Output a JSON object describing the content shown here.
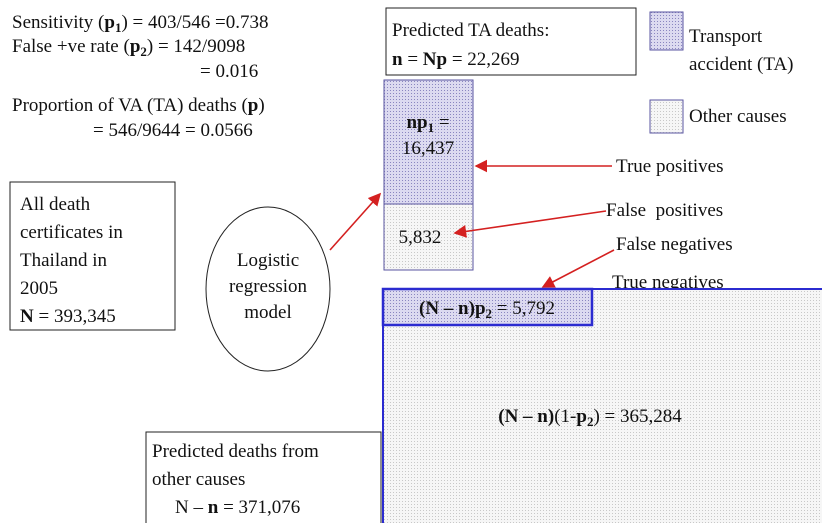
{
  "stats": {
    "sensitivity": [
      "Sensitivity (",
      "p",
      "1",
      ") = 403/546 =0.738"
    ],
    "false_positive_rate": [
      "False +ve rate (",
      "p",
      "2",
      ") = 142/9098"
    ],
    "false_positive_value": "= 0.016",
    "proportion": [
      "Proportion of VA (TA) deaths (",
      "p",
      ")"
    ],
    "proportion_value": "= 546/9644 = 0.0566"
  },
  "population_box": {
    "lines": [
      "All death",
      "certificates in",
      "Thailand in",
      "2005"
    ],
    "total": [
      "N",
      " = 393,345"
    ]
  },
  "model": [
    "Logistic",
    "regression",
    "model"
  ],
  "predicted_ta": {
    "title": "Predicted TA deaths:",
    "formula": [
      "n",
      " = ",
      "Np",
      " = 22,269"
    ]
  },
  "legend": {
    "ta": [
      "Transport",
      "accident (TA)"
    ],
    "other": "Other causes"
  },
  "ta_column": {
    "true_positive_formula": [
      "np",
      "1",
      " ="
    ],
    "true_positive_value": "16,437",
    "false_positive_value": "5,832"
  },
  "outcome_labels": [
    "True positives",
    "False  positives",
    "False negatives",
    "True negatives"
  ],
  "false_negative_box": [
    "(N – n)",
    "p",
    "2",
    " = 5,792"
  ],
  "true_negative": [
    "(N – n)",
    "(1-",
    "p",
    "2",
    ") = 365,284"
  ],
  "other_causes_box": {
    "lines": [
      "Predicted deaths from",
      "other causes"
    ],
    "formula": [
      "N – ",
      "n",
      " = 371,076"
    ]
  }
}
